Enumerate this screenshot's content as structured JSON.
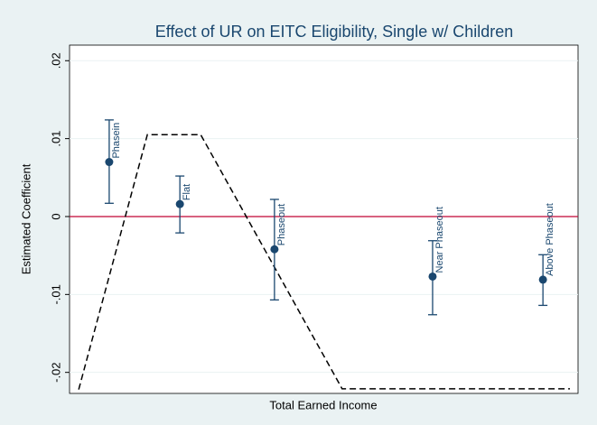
{
  "chart_data": {
    "type": "scatter",
    "title": "Effect of UR on EITC Eligibility, Single w/ Children",
    "x_label": "Total Earned Income",
    "y_label": "Estimated Coefficient",
    "xlim": [
      0,
      100
    ],
    "ylim": [
      -0.0227,
      0.022
    ],
    "yticks": [
      {
        "value": -0.02,
        "label": "-.02"
      },
      {
        "value": -0.01,
        "label": "-.01"
      },
      0,
      {
        "value": 0.01,
        "label": ".01"
      },
      {
        "value": 0.02,
        "label": ".02"
      }
    ],
    "grid": true,
    "reference_line": {
      "value": 0,
      "color": "#c10534"
    },
    "points": {
      "color": "#1a476f",
      "labels": [
        "Phasein",
        "Flat",
        "Phaseout",
        "Near Phaseout",
        "Above Phaseout"
      ],
      "x": [
        7.8,
        21.7,
        40.3,
        71.4,
        93.1
      ],
      "values": [
        0.007,
        0.0016,
        -0.0042,
        -0.0077,
        -0.0081
      ],
      "lower": [
        0.0017,
        -0.0021,
        -0.0107,
        -0.0126,
        -0.0114
      ],
      "upper": [
        0.0124,
        0.0052,
        0.0022,
        -0.0031,
        -0.0049
      ]
    },
    "line": {
      "color": "#000000",
      "dashed": true,
      "x": [
        1.8,
        15.3,
        25.8,
        53.6,
        98.4
      ],
      "values": [
        -0.0222,
        0.0105,
        0.0105,
        -0.0221,
        -0.0221
      ]
    }
  }
}
